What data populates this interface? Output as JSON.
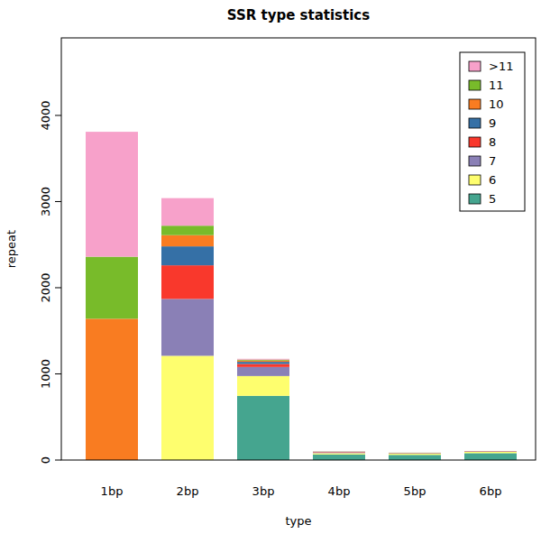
{
  "chart_data": {
    "type": "bar",
    "stacked": true,
    "title": "SSR type statistics",
    "x_label": "type",
    "y_label": "repeat",
    "categories": [
      "1bp",
      "2bp",
      "3bp",
      "4bp",
      "5bp",
      "6bp"
    ],
    "series": [
      {
        "name": "5",
        "color": "#45a58f",
        "values": [
          0,
          0,
          745,
          65,
          60,
          80
        ]
      },
      {
        "name": "6",
        "color": "#fefe6e",
        "values": [
          0,
          1210,
          230,
          15,
          15,
          15
        ]
      },
      {
        "name": "7",
        "color": "#8a80b6",
        "values": [
          0,
          660,
          105,
          10,
          5,
          5
        ]
      },
      {
        "name": "8",
        "color": "#f9382c",
        "values": [
          0,
          390,
          35,
          5,
          2,
          3
        ]
      },
      {
        "name": "9",
        "color": "#3570a6",
        "values": [
          0,
          220,
          25,
          2,
          1,
          1
        ]
      },
      {
        "name": "10",
        "color": "#f97c21",
        "values": [
          1640,
          130,
          15,
          1,
          1,
          1
        ]
      },
      {
        "name": "11",
        "color": "#78bb2a",
        "values": [
          720,
          110,
          10,
          1,
          1,
          0
        ]
      },
      {
        "name": ">11",
        "color": "#f7a1ca",
        "values": [
          1450,
          320,
          10,
          1,
          0,
          0
        ]
      }
    ],
    "ylim": [
      0,
      4900
    ],
    "yticks": [
      0,
      1000,
      2000,
      3000,
      4000
    ],
    "legend": "topright"
  }
}
